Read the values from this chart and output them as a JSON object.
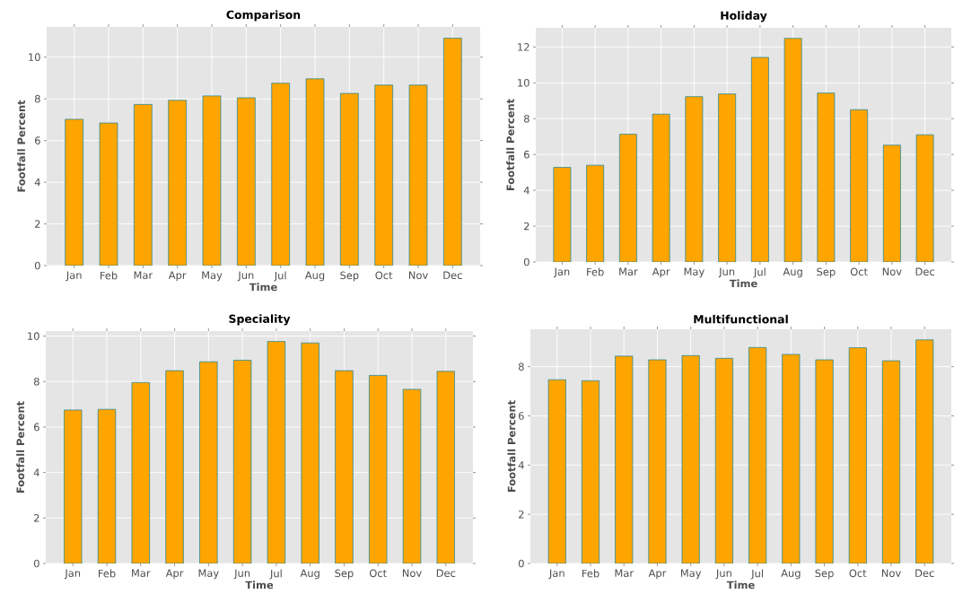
{
  "chart_data": [
    {
      "type": "bar",
      "title": "Comparison",
      "xlabel": "Time",
      "ylabel": "Footfall Percent",
      "categories": [
        "Jan",
        "Feb",
        "Mar",
        "Apr",
        "May",
        "Jun",
        "Jul",
        "Aug",
        "Sep",
        "Oct",
        "Nov",
        "Dec"
      ],
      "values": [
        7.02,
        6.84,
        7.73,
        7.93,
        8.14,
        8.05,
        8.75,
        8.96,
        8.26,
        8.66,
        8.66,
        10.91
      ],
      "color": "#ffa500",
      "ylim": [
        0,
        11.45
      ],
      "yticks": [
        0,
        2,
        4,
        6,
        8,
        10
      ],
      "grid": true
    },
    {
      "type": "bar",
      "title": "Holiday",
      "xlabel": "Time",
      "ylabel": "Footfall Percent",
      "categories": [
        "Jan",
        "Feb",
        "Mar",
        "Apr",
        "May",
        "Jun",
        "Jul",
        "Aug",
        "Sep",
        "Oct",
        "Nov",
        "Dec"
      ],
      "values": [
        5.28,
        5.4,
        7.13,
        8.25,
        9.23,
        9.38,
        11.42,
        12.48,
        9.43,
        8.5,
        6.52,
        7.1
      ],
      "color": "#ffa500",
      "ylim": [
        0,
        13.07
      ],
      "yticks": [
        0,
        2,
        4,
        6,
        8,
        10,
        12
      ],
      "grid": true
    },
    {
      "type": "bar",
      "title": "Speciality",
      "xlabel": "Time",
      "ylabel": "Footfall Percent",
      "categories": [
        "Jan",
        "Feb",
        "Mar",
        "Apr",
        "May",
        "Jun",
        "Jul",
        "Aug",
        "Sep",
        "Oct",
        "Nov",
        "Dec"
      ],
      "values": [
        6.75,
        6.78,
        7.96,
        8.48,
        8.87,
        8.94,
        9.77,
        9.7,
        8.48,
        8.27,
        7.66,
        8.45
      ],
      "color": "#ffa500",
      "ylim": [
        0,
        10.22
      ],
      "yticks": [
        0,
        2,
        4,
        6,
        8,
        10
      ],
      "grid": true
    },
    {
      "type": "bar",
      "title": "Multifunctional",
      "xlabel": "Time",
      "ylabel": "Footfall Percent",
      "categories": [
        "Jan",
        "Feb",
        "Mar",
        "Apr",
        "May",
        "Jun",
        "Jul",
        "Aug",
        "Sep",
        "Oct",
        "Nov",
        "Dec"
      ],
      "values": [
        7.47,
        7.43,
        8.43,
        8.28,
        8.45,
        8.34,
        8.78,
        8.5,
        8.28,
        8.77,
        8.24,
        9.09
      ],
      "color": "#ffa500",
      "ylim": [
        0,
        9.52
      ],
      "yticks": [
        0,
        2,
        4,
        6,
        8
      ],
      "grid": true
    }
  ]
}
